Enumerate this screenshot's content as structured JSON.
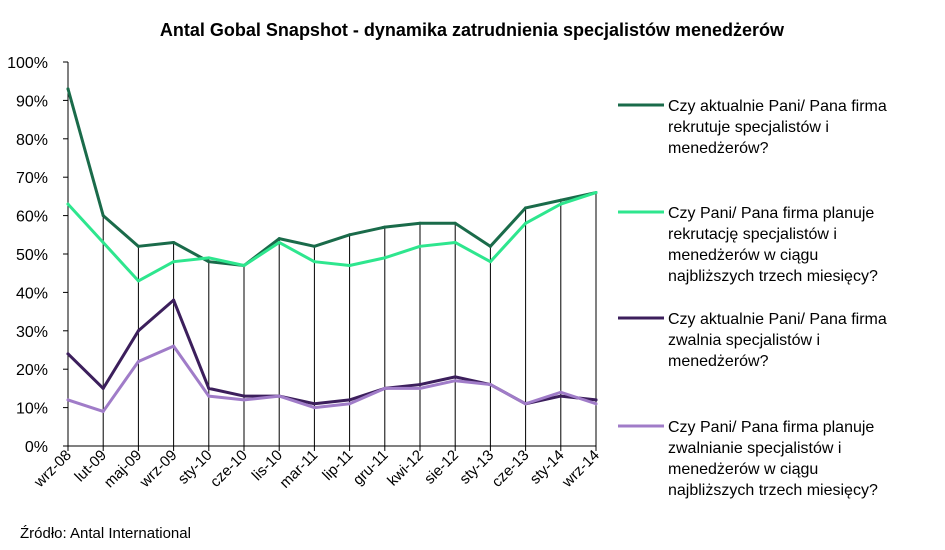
{
  "chart_data": {
    "type": "line",
    "title": "Antal Gobal Snapshot - dynamika zatrudnienia specjalistów menedżerów",
    "source": "Źródło:  Antal International",
    "categories": [
      "wrz-08",
      "lut-09",
      "maj-09",
      "wrz-09",
      "sty-10",
      "cze-10",
      "lis-10",
      "mar-11",
      "lip-11",
      "gru-11",
      "kwi-12",
      "sie-12",
      "sty-13",
      "cze-13",
      "sty-14",
      "wrz-14"
    ],
    "y_ticks": [
      "0%",
      "10%",
      "20%",
      "30%",
      "40%",
      "50%",
      "60%",
      "70%",
      "80%",
      "90%",
      "100%"
    ],
    "ylim": [
      0,
      100
    ],
    "y_unit": "%",
    "grid": "vertical drop lines only",
    "legend_position": "right",
    "series": [
      {
        "name": "Czy aktualnie Pani/ Pana firma rekrutuje specjalistów i menedżerów?",
        "legend_lines": [
          "Czy aktualnie Pani/ Pana firma",
          "rekrutuje specjalistów i",
          "menedżerów?"
        ],
        "color": "#1a6b4a",
        "values": [
          93,
          60,
          52,
          53,
          48,
          47,
          54,
          52,
          55,
          57,
          58,
          58,
          52,
          62,
          64,
          66
        ]
      },
      {
        "name": "Czy Pani/ Pana firma planuje rekrutację specjalistów i menedżerów w ciągu najbliższych trzech miesięcy?",
        "legend_lines": [
          "Czy Pani/ Pana firma planuje",
          "rekrutację specjalistów i",
          "menedżerów w ciągu",
          "najbliższych trzech miesięcy?"
        ],
        "color": "#2ee68e",
        "values": [
          63,
          53,
          43,
          48,
          49,
          47,
          53,
          48,
          47,
          49,
          52,
          53,
          48,
          58,
          63,
          66
        ]
      },
      {
        "name": "Czy aktualnie Pani/ Pana firma zwalnia specjalistów i menedżerów?",
        "legend_lines": [
          "Czy aktualnie Pani/ Pana firma",
          "zwalnia specjalistów i",
          "menedżerów?"
        ],
        "color": "#3c1f5c",
        "values": [
          24,
          15,
          30,
          38,
          15,
          13,
          13,
          11,
          12,
          15,
          16,
          18,
          16,
          11,
          13,
          12
        ]
      },
      {
        "name": "Czy Pani/ Pana firma planuje zwalnianie specjalistów i menedżerów w ciągu najbliższych trzech miesięcy?",
        "legend_lines": [
          "Czy Pani/ Pana firma planuje",
          "zwalnianie specjalistów i",
          "menedżerów w ciągu",
          "najbliższych trzech miesięcy?"
        ],
        "color": "#a07cc8",
        "values": [
          12,
          9,
          22,
          26,
          13,
          12,
          13,
          10,
          11,
          15,
          15,
          17,
          16,
          11,
          14,
          11
        ]
      }
    ]
  }
}
